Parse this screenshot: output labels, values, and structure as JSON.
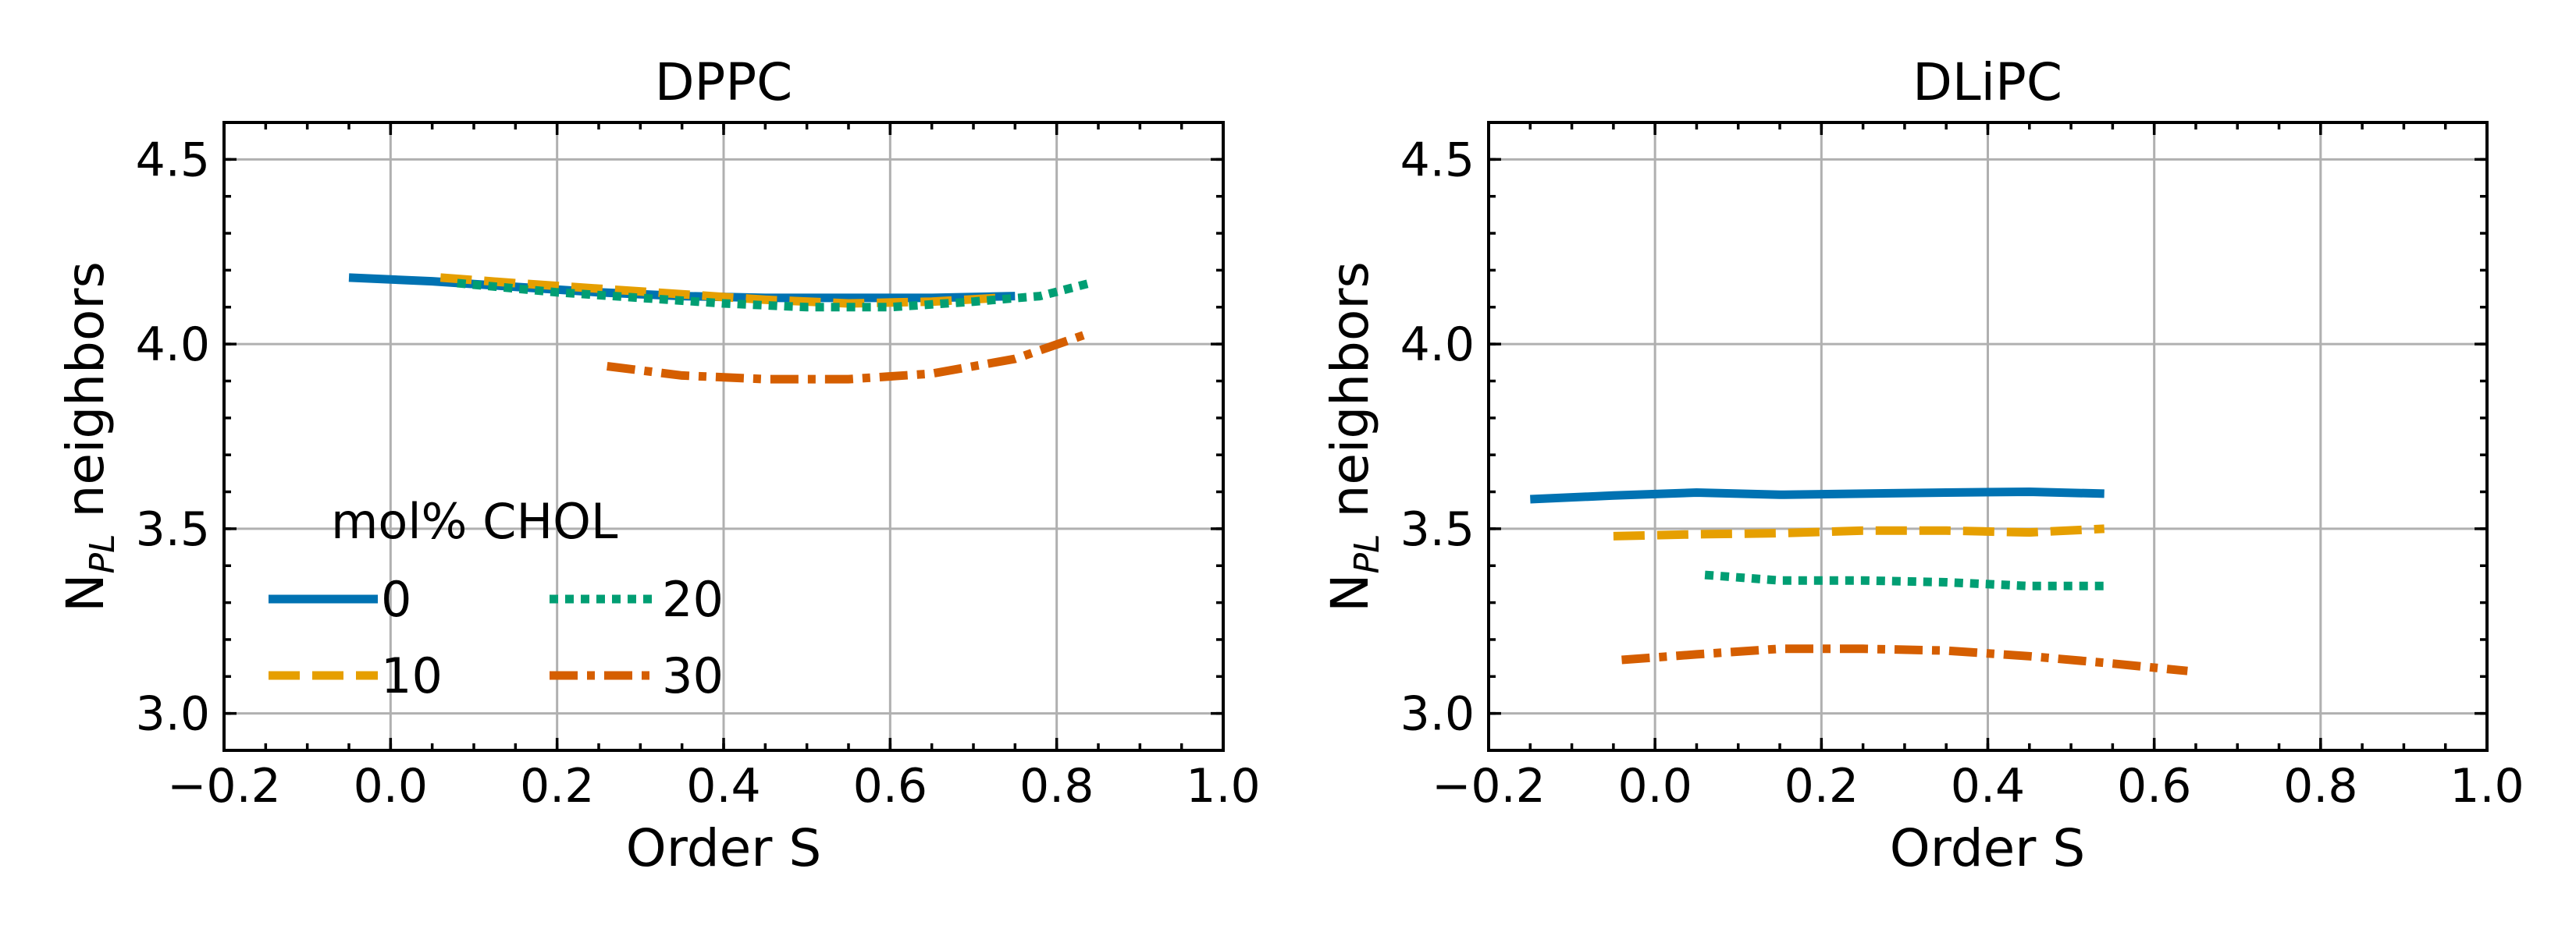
{
  "chart_data": [
    {
      "type": "line",
      "title": "DPPC",
      "xlabel": "Order S",
      "ylabel_main": "N",
      "ylabel_sub": "PL",
      "ylabel_rest": " neighbors",
      "xlim": [
        -0.2,
        1.0
      ],
      "ylim": [
        2.9,
        4.6
      ],
      "xticks": [
        "−0.2",
        "0.0",
        "0.2",
        "0.4",
        "0.6",
        "0.8",
        "1.0"
      ],
      "xtick_values": [
        -0.2,
        0.0,
        0.2,
        0.4,
        0.6,
        0.8,
        1.0
      ],
      "yticks": [
        "3.0",
        "3.5",
        "4.0",
        "4.5"
      ],
      "ytick_values": [
        3.0,
        3.5,
        4.0,
        4.5
      ],
      "grid": true,
      "legend": {
        "title": "mol% CHOL",
        "placement": "lower-left",
        "columns": 2
      },
      "series": [
        {
          "name": "0",
          "color": "#0072b2",
          "style": "solid",
          "x": [
            -0.05,
            0.05,
            0.15,
            0.25,
            0.35,
            0.45,
            0.55,
            0.65,
            0.75
          ],
          "y": [
            4.18,
            4.17,
            4.155,
            4.14,
            4.13,
            4.125,
            4.125,
            4.125,
            4.13
          ]
        },
        {
          "name": "10",
          "color": "#e69f00",
          "style": "dashed",
          "x": [
            0.06,
            0.15,
            0.25,
            0.35,
            0.45,
            0.55,
            0.65,
            0.73
          ],
          "y": [
            4.18,
            4.165,
            4.15,
            4.135,
            4.12,
            4.11,
            4.115,
            4.125
          ]
        },
        {
          "name": "20",
          "color": "#009e73",
          "style": "dotted",
          "x": [
            0.08,
            0.2,
            0.3,
            0.4,
            0.5,
            0.6,
            0.7,
            0.78,
            0.84
          ],
          "y": [
            4.165,
            4.14,
            4.125,
            4.11,
            4.1,
            4.1,
            4.115,
            4.13,
            4.165
          ]
        },
        {
          "name": "30",
          "color": "#d55e00",
          "style": "dashdot",
          "x": [
            0.26,
            0.35,
            0.45,
            0.55,
            0.65,
            0.75,
            0.84
          ],
          "y": [
            3.94,
            3.915,
            3.905,
            3.905,
            3.92,
            3.96,
            4.03
          ]
        }
      ]
    },
    {
      "type": "line",
      "title": "DLiPC",
      "xlabel": "Order S",
      "ylabel_main": "N",
      "ylabel_sub": "PL",
      "ylabel_rest": " neighbors",
      "xlim": [
        -0.2,
        1.0
      ],
      "ylim": [
        2.9,
        4.6
      ],
      "xticks": [
        "−0.2",
        "0.0",
        "0.2",
        "0.4",
        "0.6",
        "0.8",
        "1.0"
      ],
      "xtick_values": [
        -0.2,
        0.0,
        0.2,
        0.4,
        0.6,
        0.8,
        1.0
      ],
      "yticks": [
        "3.0",
        "3.5",
        "4.0",
        "4.5"
      ],
      "ytick_values": [
        3.0,
        3.5,
        4.0,
        4.5
      ],
      "grid": true,
      "series": [
        {
          "name": "0",
          "color": "#0072b2",
          "style": "solid",
          "x": [
            -0.15,
            -0.05,
            0.05,
            0.15,
            0.25,
            0.35,
            0.45,
            0.54
          ],
          "y": [
            3.58,
            3.59,
            3.598,
            3.592,
            3.595,
            3.598,
            3.6,
            3.595
          ]
        },
        {
          "name": "10",
          "color": "#e69f00",
          "style": "dashed",
          "x": [
            -0.05,
            0.05,
            0.15,
            0.25,
            0.35,
            0.45,
            0.54
          ],
          "y": [
            3.48,
            3.485,
            3.488,
            3.495,
            3.495,
            3.49,
            3.5
          ]
        },
        {
          "name": "20",
          "color": "#009e73",
          "style": "dotted",
          "x": [
            0.06,
            0.15,
            0.25,
            0.35,
            0.45,
            0.54
          ],
          "y": [
            3.375,
            3.36,
            3.36,
            3.355,
            3.345,
            3.345
          ]
        },
        {
          "name": "30",
          "color": "#d55e00",
          "style": "dashdot",
          "x": [
            -0.04,
            0.05,
            0.15,
            0.25,
            0.35,
            0.45,
            0.55,
            0.64
          ],
          "y": [
            3.145,
            3.16,
            3.175,
            3.175,
            3.17,
            3.155,
            3.135,
            3.115
          ]
        }
      ]
    }
  ]
}
